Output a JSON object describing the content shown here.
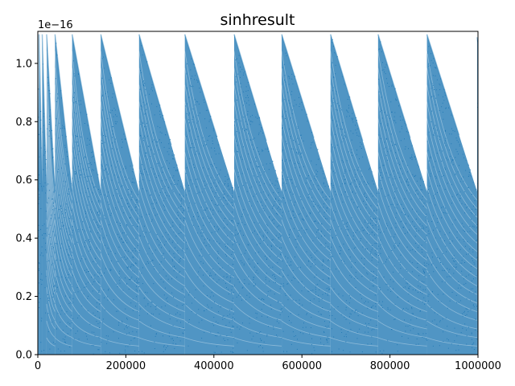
{
  "chart_data": {
    "type": "scatter",
    "title": "sinhresult",
    "xlabel": "",
    "ylabel": "",
    "y_multiplier_label": "1e−16",
    "xlim": [
      0,
      1000000
    ],
    "ylim": [
      0,
      1.11
    ],
    "x_ticks": [
      {
        "value": 0,
        "label": "0"
      },
      {
        "value": 200000,
        "label": "200000"
      },
      {
        "value": 400000,
        "label": "400000"
      },
      {
        "value": 600000,
        "label": "600000"
      },
      {
        "value": 800000,
        "label": "800000"
      },
      {
        "value": 1000000,
        "label": "1000000"
      }
    ],
    "y_ticks": [
      {
        "value": 0.0,
        "label": "0.0"
      },
      {
        "value": 0.2,
        "label": "0.2"
      },
      {
        "value": 0.4,
        "label": "0.4"
      },
      {
        "value": 0.6,
        "label": "0.6"
      },
      {
        "value": 0.8,
        "label": "0.8"
      },
      {
        "value": 1.0,
        "label": "1.0"
      }
    ],
    "grid": false,
    "legend": "none",
    "series": [
      {
        "marker_color": "#1f77b4",
        "binade_segments": [
          {
            "x_start": 0,
            "x_end": 3000,
            "y_max_start": 1.1,
            "y_max_end": 0.56
          },
          {
            "x_start": 3000,
            "x_end": 10000,
            "y_max_start": 1.1,
            "y_max_end": 0.56
          },
          {
            "x_start": 10000,
            "x_end": 20000,
            "y_max_start": 1.1,
            "y_max_end": 0.56
          },
          {
            "x_start": 20000,
            "x_end": 39000,
            "y_max_start": 1.1,
            "y_max_end": 0.56
          },
          {
            "x_start": 39000,
            "x_end": 78000,
            "y_max_start": 1.1,
            "y_max_end": 0.56
          },
          {
            "x_start": 78000,
            "x_end": 143000,
            "y_max_start": 1.1,
            "y_max_end": 0.56
          },
          {
            "x_start": 143000,
            "x_end": 230000,
            "y_max_start": 1.1,
            "y_max_end": 0.56
          },
          {
            "x_start": 230000,
            "x_end": 334000,
            "y_max_start": 1.1,
            "y_max_end": 0.56
          },
          {
            "x_start": 334000,
            "x_end": 446000,
            "y_max_start": 1.1,
            "y_max_end": 0.56
          },
          {
            "x_start": 446000,
            "x_end": 554000,
            "y_max_start": 1.1,
            "y_max_end": 0.56
          },
          {
            "x_start": 554000,
            "x_end": 665000,
            "y_max_start": 1.1,
            "y_max_end": 0.56
          },
          {
            "x_start": 665000,
            "x_end": 773000,
            "y_max_start": 1.1,
            "y_max_end": 0.56
          },
          {
            "x_start": 773000,
            "x_end": 884000,
            "y_max_start": 1.1,
            "y_max_end": 0.56
          },
          {
            "x_start": 884000,
            "x_end": 998000,
            "y_max_start": 1.1,
            "y_max_end": 0.56
          },
          {
            "x_start": 998000,
            "x_end": 1000000,
            "y_max_start": 1.09,
            "y_max_end": 1.07
          }
        ]
      }
    ]
  }
}
